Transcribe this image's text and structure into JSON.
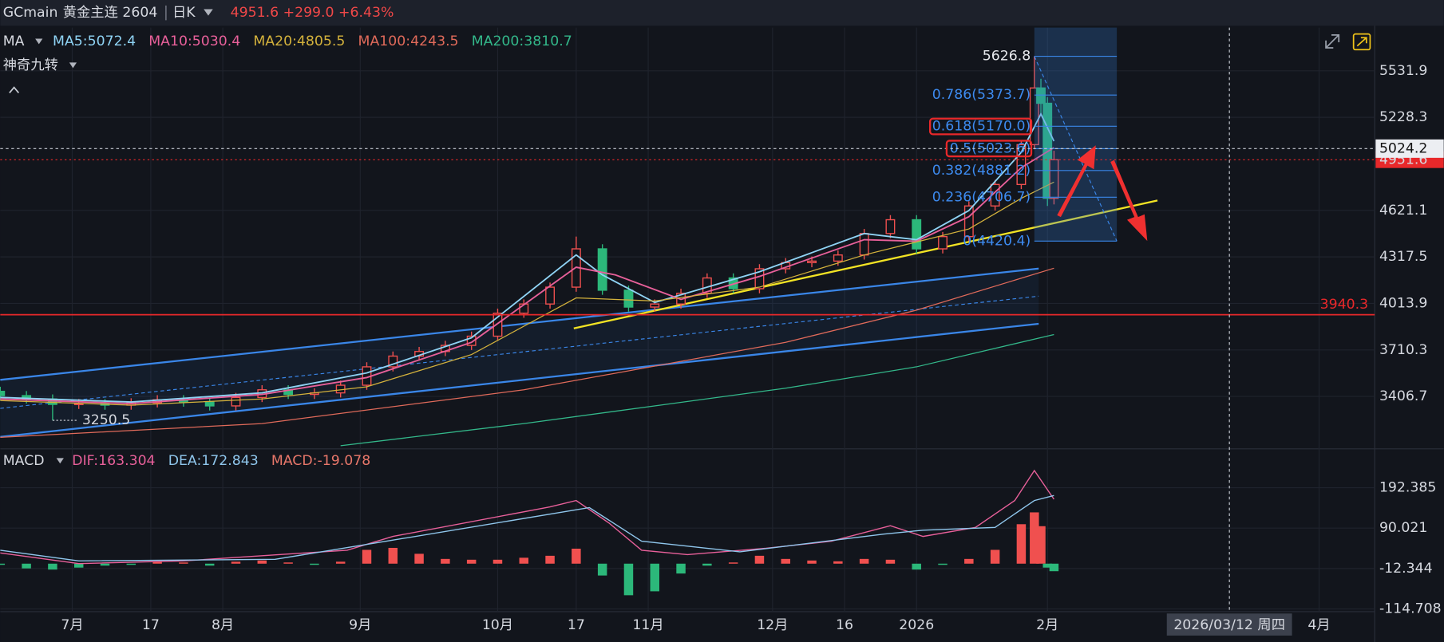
{
  "header": {
    "symbol": "GCmain",
    "name": "黄金主连 2604",
    "period": "日K",
    "quote": "4951.6 +299.0 +6.43%"
  },
  "chart_data": [
    {
      "type": "candlestick",
      "legend_title": "MA",
      "indicator": "神奇九转",
      "x": [
        0,
        4,
        8,
        12,
        16,
        20,
        24,
        28,
        32,
        36,
        40,
        44,
        48,
        52,
        56,
        60,
        64,
        68,
        72,
        76,
        80,
        84,
        88,
        92,
        96,
        100,
        104,
        108,
        112,
        116,
        120,
        124,
        128,
        132,
        136,
        140,
        144,
        148,
        152,
        156,
        158,
        159,
        160,
        161
      ],
      "open": [
        3440,
        3412,
        3390,
        3355,
        3360,
        3350,
        3365,
        3385,
        3370,
        3345,
        3400,
        3450,
        3420,
        3430,
        3480,
        3600,
        3670,
        3700,
        3740,
        3800,
        3950,
        4010,
        4120,
        4370,
        4100,
        3990,
        4010,
        4080,
        4180,
        4110,
        4240,
        4280,
        4290,
        4330,
        4470,
        4560,
        4370,
        4450,
        4650,
        4790,
        5050,
        5420,
        5320,
        4700
      ],
      "high": [
        3470,
        3442,
        3420,
        3390,
        3390,
        3395,
        3415,
        3415,
        3400,
        3430,
        3480,
        3480,
        3460,
        3510,
        3630,
        3700,
        3730,
        3770,
        3830,
        3980,
        4040,
        4150,
        4450,
        4400,
        4130,
        4040,
        4110,
        4210,
        4210,
        4270,
        4310,
        4320,
        4360,
        4500,
        4590,
        4590,
        4480,
        4680,
        4820,
        5080,
        5626.8,
        5480,
        5360,
        5010
      ],
      "low": [
        3382,
        3360,
        3250.5,
        3325,
        3320,
        3320,
        3335,
        3340,
        3315,
        3315,
        3370,
        3390,
        3390,
        3400,
        3450,
        3570,
        3640,
        3670,
        3710,
        3770,
        3920,
        3980,
        4090,
        4070,
        3960,
        3960,
        3980,
        4050,
        4080,
        4080,
        4210,
        4250,
        4260,
        4300,
        4440,
        4340,
        4340,
        4420,
        4620,
        4760,
        5020,
        5250,
        4650,
        4660
      ],
      "close": [
        3412,
        3390,
        3355,
        3360,
        3350,
        3365,
        3385,
        3370,
        3345,
        3400,
        3450,
        3420,
        3430,
        3480,
        3600,
        3670,
        3700,
        3740,
        3800,
        3950,
        4010,
        4120,
        4370,
        4100,
        3990,
        4010,
        4080,
        4180,
        4110,
        4240,
        4280,
        4290,
        4330,
        4470,
        4560,
        4370,
        4450,
        4650,
        4790,
        5050,
        5420,
        5320,
        4700,
        4951.6
      ],
      "up_color": "#f0504f",
      "down_color": "#2cb87a",
      "series": [
        {
          "name": "MA5:5072.4",
          "color": "#8fd3f4",
          "x": [
            0,
            20,
            40,
            56,
            72,
            88,
            92,
            100,
            116,
            132,
            140,
            148,
            156,
            159,
            161
          ],
          "values": [
            3400,
            3370,
            3430,
            3560,
            3790,
            4330,
            4200,
            4020,
            4220,
            4470,
            4430,
            4620,
            5000,
            5250,
            5072.4
          ]
        },
        {
          "name": "MA10:5030.4",
          "color": "#e8609a",
          "x": [
            0,
            20,
            40,
            56,
            72,
            88,
            94,
            104,
            116,
            132,
            140,
            148,
            156,
            161
          ],
          "values": [
            3390,
            3360,
            3420,
            3530,
            3760,
            4250,
            4200,
            4040,
            4190,
            4430,
            4420,
            4580,
            4900,
            5030.4
          ]
        },
        {
          "name": "MA20:4805.5",
          "color": "#d4b23c",
          "x": [
            0,
            20,
            40,
            56,
            72,
            88,
            100,
            116,
            132,
            148,
            156,
            161
          ],
          "values": [
            3380,
            3350,
            3390,
            3470,
            3680,
            4050,
            4030,
            4120,
            4330,
            4500,
            4700,
            4805.5
          ]
        },
        {
          "name": "MA100:4243.5",
          "color": "#e06a5a",
          "x": [
            0,
            40,
            80,
            120,
            140,
            161
          ],
          "values": [
            3140,
            3230,
            3450,
            3760,
            3970,
            4243.5
          ]
        },
        {
          "name": "MA200:3810.7",
          "color": "#33b88a",
          "x": [
            52,
            80,
            120,
            140,
            161
          ],
          "values": [
            3085,
            3230,
            3460,
            3600,
            3810.7
          ]
        }
      ],
      "xlim": [
        0,
        210
      ],
      "xticks": [
        {
          "value": 11,
          "label": "7月"
        },
        {
          "value": 23,
          "label": "17"
        },
        {
          "value": 34,
          "label": "8月"
        },
        {
          "value": 55,
          "label": "9月"
        },
        {
          "value": 76,
          "label": "10月"
        },
        {
          "value": 88,
          "label": "17"
        },
        {
          "value": 99,
          "label": "11月"
        },
        {
          "value": 118,
          "label": "12月"
        },
        {
          "value": 129,
          "label": "16"
        },
        {
          "value": 140,
          "label": "2026"
        },
        {
          "value": 160,
          "label": "2月"
        },
        {
          "value": 201.5,
          "label": "4月"
        }
      ],
      "ylim": [
        3082.7,
        5814.0
      ],
      "yticks": [
        5531.9,
        5228.3,
        4621.1,
        4317.5,
        4013.9,
        3710.3,
        3406.7
      ],
      "grid": true,
      "crosshair": {
        "x": {
          "value": 187.8,
          "label": "2026/03/12 周四"
        },
        "y": 5024.2
      },
      "last_price": 4951.6,
      "hline": 3940.3,
      "fib_x": [
        158,
        170.6
      ],
      "fib": [
        5626.8,
        {
          "value": 5373.7,
          "label": "0.786(5373.7)"
        },
        {
          "value": 5170.0,
          "label": "0.618(5170.0)"
        },
        {
          "value": 5023.6,
          "label": "0.5(5023.6)"
        },
        {
          "value": 4881.2,
          "label": "0.382(4881.2)"
        },
        {
          "value": 4706.7,
          "label": "0.236(4706.7)"
        },
        {
          "value": 4420.4,
          "label": "0(4420.4)"
        }
      ]
    },
    {
      "type": "macd",
      "legend_title": "MACD",
      "series": [
        {
          "name": "DIF:163.304",
          "color": "#e8609a",
          "x": [
            0,
            12,
            28,
            53,
            60,
            84,
            88,
            93,
            98,
            105,
            117,
            127,
            136,
            141,
            149,
            155,
            158,
            161
          ],
          "values": [
            27,
            0,
            7,
            34,
            69,
            144,
            160,
            103,
            34,
            23,
            39,
            57,
            96,
            69,
            92,
            160,
            236,
            163.304
          ]
        },
        {
          "name": "DEA:172.843",
          "color": "#8fc6ec",
          "x": [
            0,
            12,
            42,
            59,
            90,
            98,
            113,
            135,
            141,
            152,
            158,
            161
          ],
          "values": [
            34,
            7,
            11,
            57,
            142,
            57,
            30,
            75,
            85,
            92,
            160,
            172.843
          ]
        }
      ],
      "histogram": {
        "name": "MACD:-19.078",
        "color": "#e8776a",
        "up_color": "#f0504f",
        "down_color": "#2cb87a",
        "x": [
          0,
          4,
          8,
          12,
          16,
          20,
          24,
          28,
          32,
          36,
          40,
          44,
          48,
          52,
          56,
          60,
          64,
          68,
          72,
          76,
          80,
          84,
          88,
          92,
          96,
          100,
          104,
          108,
          112,
          116,
          120,
          124,
          128,
          132,
          136,
          140,
          144,
          148,
          152,
          156,
          158,
          159,
          160,
          161
        ],
        "values": [
          -3,
          -12,
          -15,
          -10,
          -5,
          -3,
          5,
          3,
          -5,
          5,
          8,
          3,
          -3,
          5,
          35,
          40,
          25,
          12,
          10,
          10,
          15,
          20,
          38,
          -30,
          -80,
          -70,
          -25,
          -5,
          3,
          20,
          12,
          8,
          6,
          12,
          10,
          -15,
          -3,
          12,
          35,
          100,
          130,
          95,
          -10,
          -19.078
        ]
      },
      "ylim": [
        -121.6,
        286.3
      ],
      "yticks": [
        192.385,
        90.021,
        -12.344,
        -114.708
      ]
    }
  ]
}
